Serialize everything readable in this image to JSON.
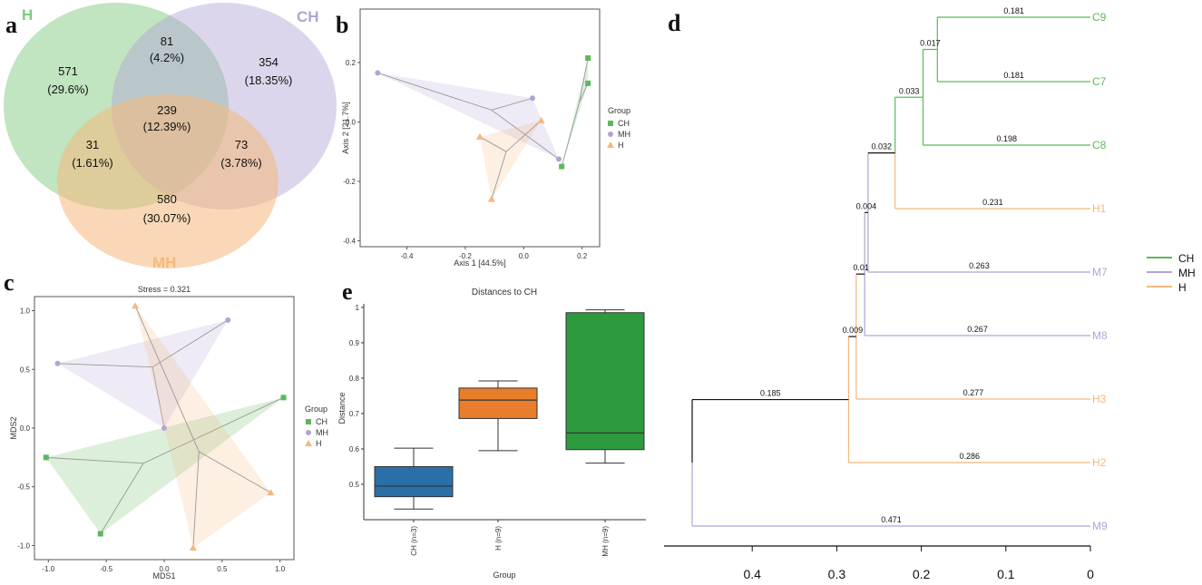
{
  "colors": {
    "CH": "#5cb85c",
    "MH": "#b2a4d4",
    "H": "#f5b87c",
    "box_CH": "#2b6fa8",
    "box_H": "#e87e2c",
    "box_MH": "#2e9a3e"
  },
  "panel_letters": [
    "a",
    "b",
    "c",
    "d",
    "e"
  ],
  "chart_data": [
    {
      "panel": "a",
      "type": "venn",
      "sets": [
        {
          "name": "H",
          "color": "#5cb85c"
        },
        {
          "name": "CH",
          "color": "#b2a4d4"
        },
        {
          "name": "MH",
          "color": "#f5b87c"
        }
      ],
      "regions": [
        {
          "id": "H_only",
          "sets": [
            "H"
          ],
          "count": "571",
          "percent": "(29.6%)"
        },
        {
          "id": "H_CH",
          "sets": [
            "H",
            "CH"
          ],
          "count": "81",
          "percent": "(4.2%)"
        },
        {
          "id": "CH_only",
          "sets": [
            "CH"
          ],
          "count": "354",
          "percent": "(18.35%)"
        },
        {
          "id": "all",
          "sets": [
            "H",
            "CH",
            "MH"
          ],
          "count": "239",
          "percent": "(12.39%)"
        },
        {
          "id": "H_MH",
          "sets": [
            "H",
            "MH"
          ],
          "count": "31",
          "percent": "(1.61%)"
        },
        {
          "id": "CH_MH",
          "sets": [
            "CH",
            "MH"
          ],
          "count": "73",
          "percent": "(3.78%)"
        },
        {
          "id": "MH_only",
          "sets": [
            "MH"
          ],
          "count": "580",
          "percent": "(30.07%)"
        }
      ]
    },
    {
      "panel": "b",
      "type": "scatter",
      "xlabel": "Axis 1 [44.5%]",
      "ylabel": "Axis 2 [21.7%]",
      "xlim": [
        -0.56,
        0.26
      ],
      "ylim": [
        -0.42,
        0.38
      ],
      "xticks": [
        -0.4,
        -0.2,
        0.0,
        0.2
      ],
      "xtick_labels": [
        "-0.4",
        "-0.2",
        "0.0",
        "0.2"
      ],
      "yticks": [
        -0.4,
        -0.2,
        0.0,
        0.2
      ],
      "ytick_labels": [
        "-0.4",
        "-0.2",
        "0.0",
        "0.2"
      ],
      "legend_title": "Group",
      "legend": [
        "CH",
        "MH",
        "H"
      ],
      "series": [
        {
          "name": "CH",
          "marker": "square",
          "points": [
            [
              0.22,
              0.215
            ],
            [
              0.22,
              0.13
            ],
            [
              0.13,
              -0.15
            ]
          ],
          "centroid": [
            0.19,
            0.065
          ]
        },
        {
          "name": "MH",
          "marker": "circle",
          "points": [
            [
              -0.5,
              0.165
            ],
            [
              0.03,
              0.08
            ],
            [
              0.12,
              -0.125
            ]
          ],
          "centroid": [
            -0.11,
            0.04
          ]
        },
        {
          "name": "H",
          "marker": "triangle",
          "points": [
            [
              -0.15,
              -0.05
            ],
            [
              -0.11,
              -0.26
            ],
            [
              0.06,
              0.005
            ]
          ],
          "centroid": [
            -0.06,
            -0.1
          ]
        }
      ]
    },
    {
      "panel": "c",
      "type": "scatter",
      "title": "Stress = 0.321",
      "xlabel": "MDS1",
      "ylabel": "MDS2",
      "xlim": [
        -1.12,
        1.12
      ],
      "ylim": [
        -1.12,
        1.12
      ],
      "xticks": [
        -1.0,
        -0.5,
        0.0,
        0.5,
        1.0
      ],
      "xtick_labels": [
        "-1.0",
        "-0.5",
        "0.0",
        "0.5",
        "1.0"
      ],
      "yticks": [
        -1.0,
        -0.5,
        0.0,
        0.5,
        1.0
      ],
      "ytick_labels": [
        "-1.0",
        "-0.5",
        "0.0",
        "0.5",
        "1.0"
      ],
      "legend_title": "Group",
      "legend": [
        "CH",
        "MH",
        "H"
      ],
      "series": [
        {
          "name": "CH",
          "marker": "square",
          "points": [
            [
              1.03,
              0.26
            ],
            [
              -1.02,
              -0.25
            ],
            [
              -0.55,
              -0.9
            ]
          ],
          "centroid": [
            -0.18,
            -0.3
          ]
        },
        {
          "name": "MH",
          "marker": "circle",
          "points": [
            [
              0.55,
              0.92
            ],
            [
              -0.92,
              0.55
            ],
            [
              0.0,
              0.0
            ]
          ],
          "centroid": [
            -0.1,
            0.52
          ]
        },
        {
          "name": "H",
          "marker": "triangle",
          "points": [
            [
              -0.25,
              1.04
            ],
            [
              0.92,
              -0.55
            ],
            [
              0.25,
              -1.02
            ]
          ],
          "centroid": [
            0.3,
            -0.2
          ]
        }
      ]
    },
    {
      "panel": "d",
      "type": "dendrogram",
      "legend": [
        "CH",
        "MH",
        "H"
      ],
      "axis_ticks": [
        0.4,
        0.3,
        0.2,
        0.1,
        0
      ],
      "axis_tick_labels": [
        "0.4",
        "0.3",
        "0.2",
        "0.1",
        "0"
      ],
      "leaves": [
        {
          "label": "C9",
          "group": "CH",
          "height": 0.0
        },
        {
          "label": "C7",
          "group": "CH",
          "height": 0.0
        },
        {
          "label": "C8",
          "group": "CH",
          "height": 0.0
        },
        {
          "label": "H1",
          "group": "H",
          "height": 0.0
        },
        {
          "label": "M7",
          "group": "MH",
          "height": 0.0
        },
        {
          "label": "M8",
          "group": "MH",
          "height": 0.0
        },
        {
          "label": "H3",
          "group": "H",
          "height": 0.0
        },
        {
          "label": "H2",
          "group": "H",
          "height": 0.0
        },
        {
          "label": "M9",
          "group": "MH",
          "height": 0.0
        }
      ],
      "branch_labels": [
        {
          "text": "0.181",
          "of": "C9"
        },
        {
          "text": "0.181",
          "of": "C7"
        },
        {
          "text": "0.198",
          "of": "C8"
        },
        {
          "text": "0.231",
          "of": "H1"
        },
        {
          "text": "0.263",
          "of": "M7"
        },
        {
          "text": "0.267",
          "of": "M8"
        },
        {
          "text": "0.277",
          "of": "H3"
        },
        {
          "text": "0.286",
          "of": "H2"
        },
        {
          "text": "0.471",
          "of": "M9"
        },
        {
          "text": "0.017",
          "of": "C9C7"
        },
        {
          "text": "0.033",
          "of": "C"
        },
        {
          "text": "0.032",
          "of": "CH1"
        },
        {
          "text": "0.004",
          "of": "CH1M7"
        },
        {
          "text": "0.01",
          "of": "CH1M7M8"
        },
        {
          "text": "0.009",
          "of": "node_H3"
        },
        {
          "text": "0.185",
          "of": "node_H2"
        }
      ],
      "nodes": {
        "C9C7": 0.181,
        "C": 0.198,
        "CH1": 0.231,
        "CH1M7": 0.263,
        "CH1M7M8": 0.267,
        "node_H3": 0.277,
        "node_H2": 0.286,
        "root": 0.471
      }
    },
    {
      "panel": "e",
      "type": "box",
      "title": "Distances to CH",
      "xlabel": "Group",
      "ylabel": "Distance",
      "categories": [
        "CH (n=3)",
        "H (n=9)",
        "MH (n=9)"
      ],
      "ylim": [
        0.4,
        1.01
      ],
      "yticks": [
        0.5,
        0.6,
        0.7,
        0.8,
        0.9,
        1.0
      ],
      "ytick_labels": [
        "0.5",
        "0.6",
        "0.7",
        "0.8",
        "0.9",
        "1.0"
      ],
      "boxes": [
        {
          "name": "CH (n=3)",
          "min": 0.43,
          "q1": 0.465,
          "median": 0.495,
          "q3": 0.55,
          "max": 0.602,
          "color": "#2b6fa8"
        },
        {
          "name": "H (n=9)",
          "min": 0.595,
          "q1": 0.686,
          "median": 0.738,
          "q3": 0.772,
          "max": 0.792,
          "color": "#e87e2c"
        },
        {
          "name": "MH (n=9)",
          "min": 0.56,
          "q1": 0.598,
          "median": 0.645,
          "q3": 0.985,
          "max": 0.993,
          "color": "#2e9a3e"
        }
      ]
    }
  ]
}
